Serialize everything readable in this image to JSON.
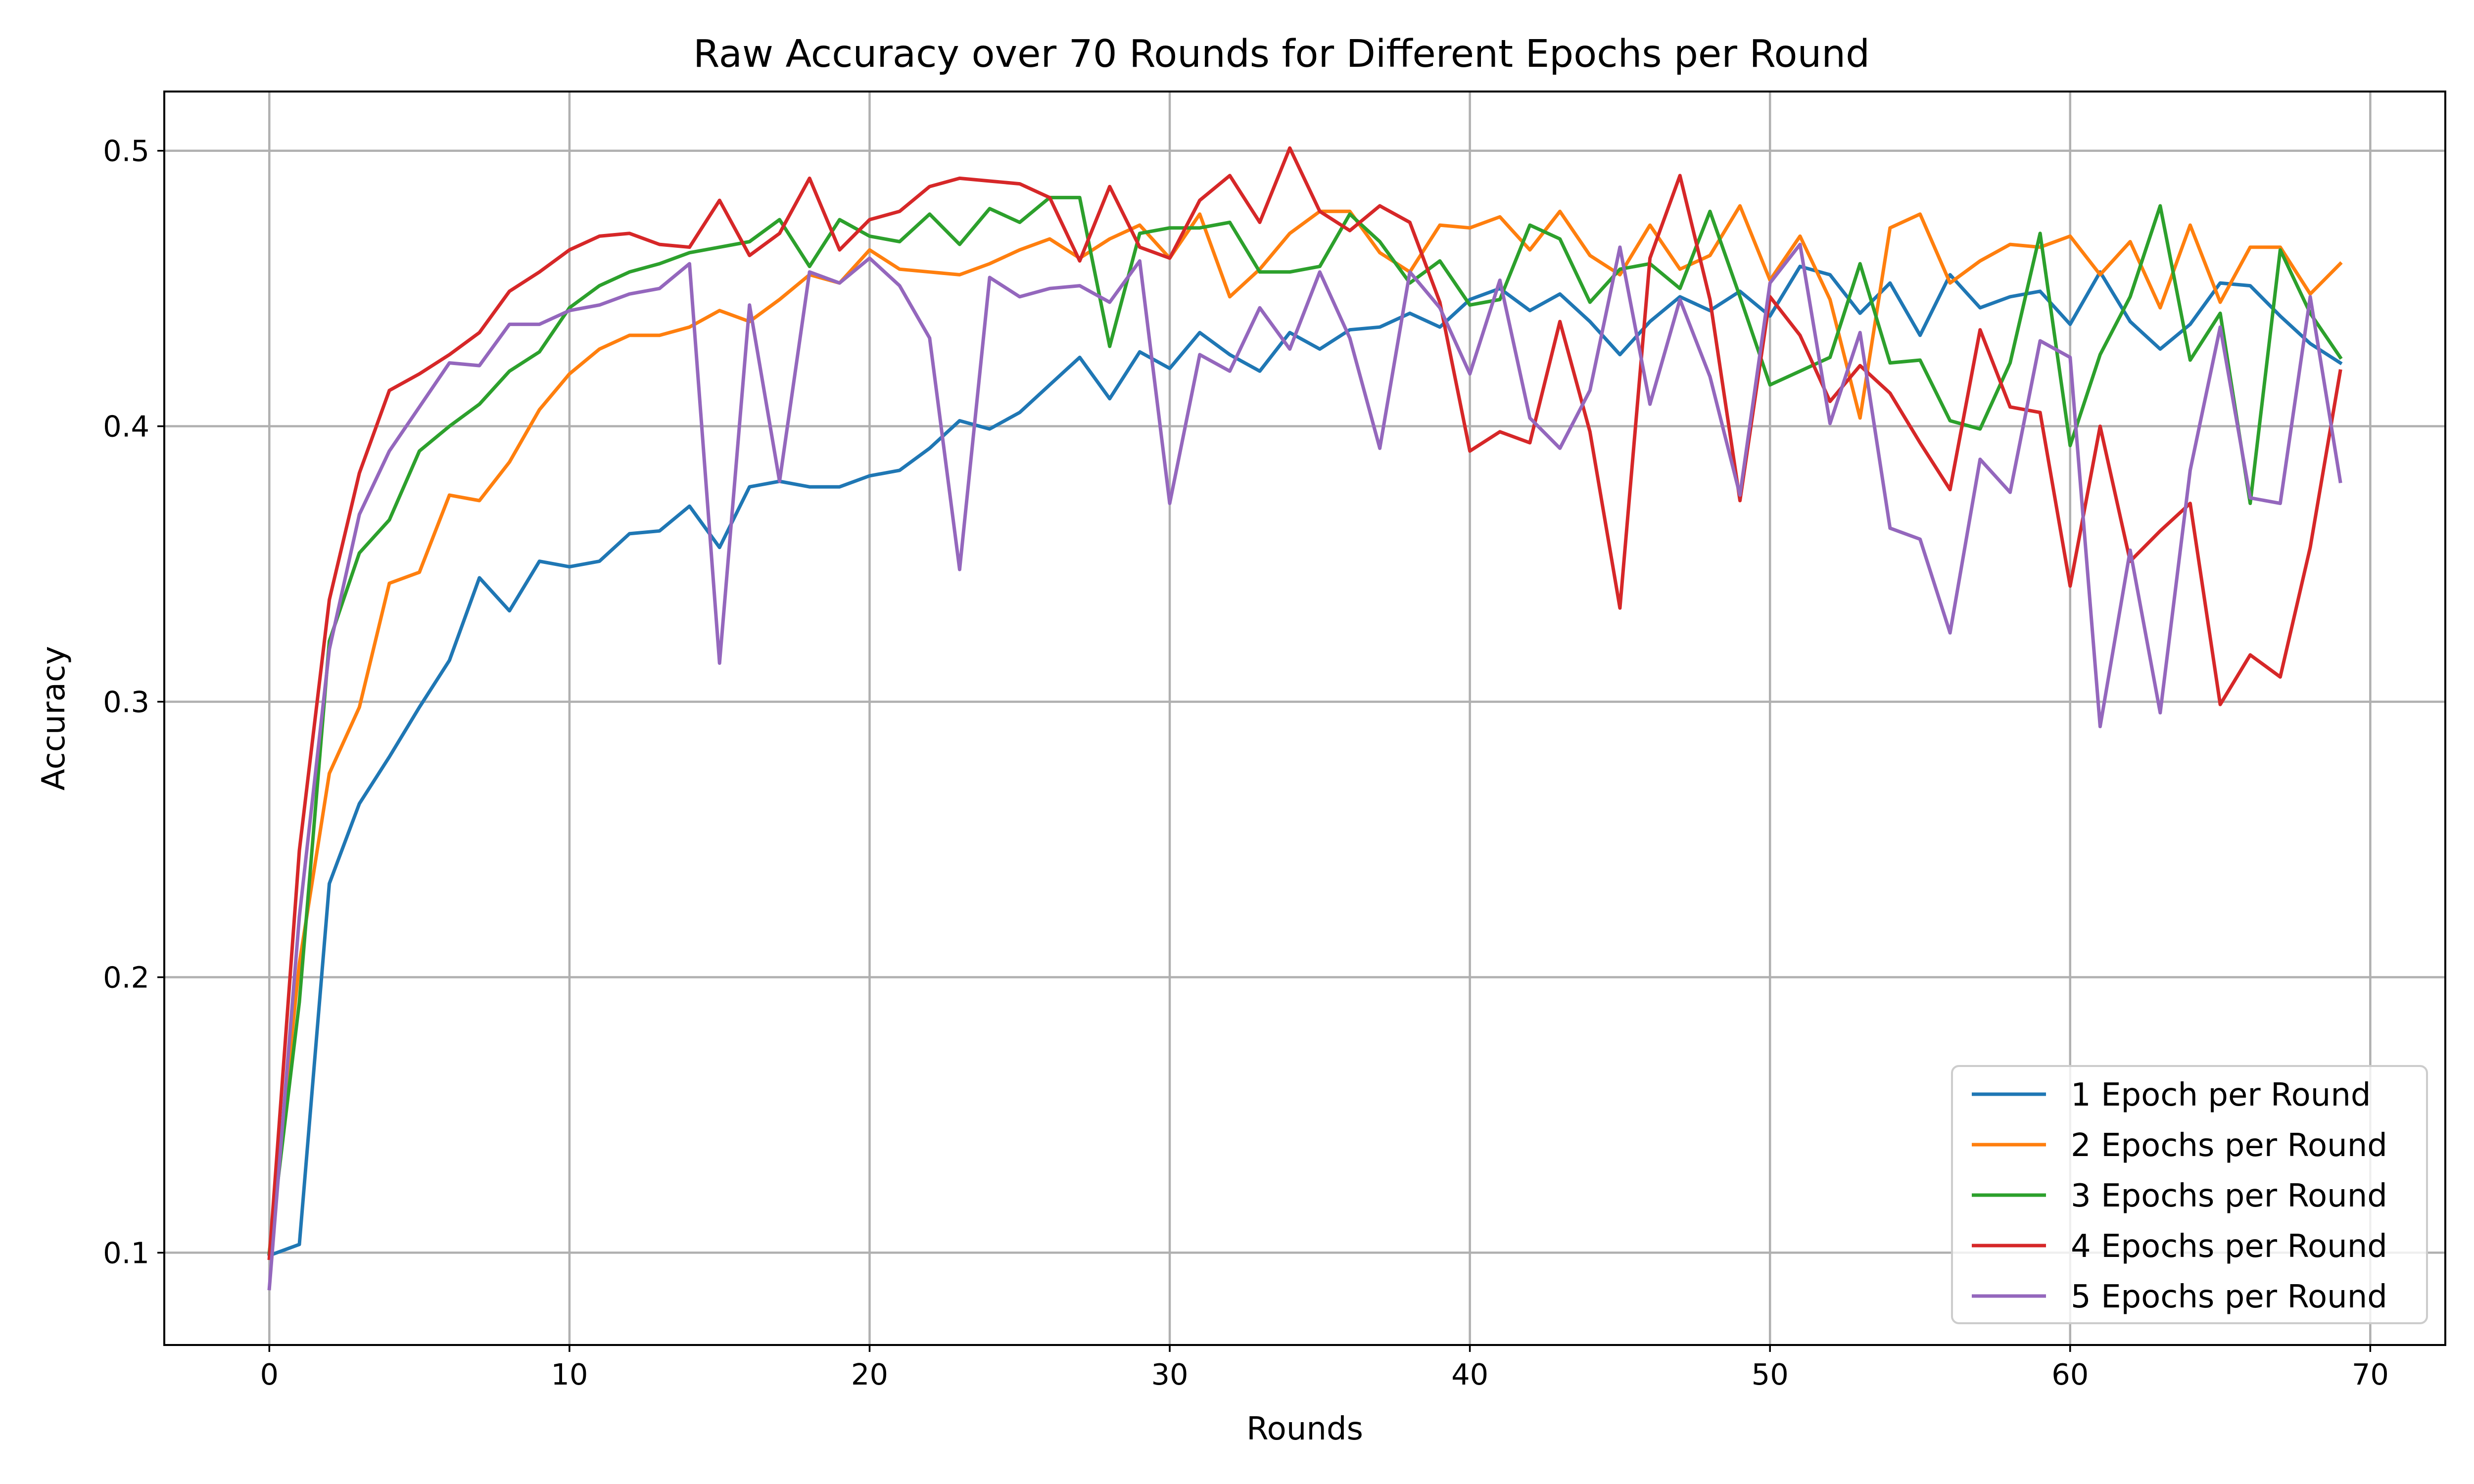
{
  "chart_data": {
    "type": "line",
    "title": "Raw Accuracy over 70 Rounds for Different Epochs per Round",
    "xlabel": "Rounds",
    "ylabel": "Accuracy",
    "xlim": [
      -3.5,
      72.5
    ],
    "ylim": [
      0.0665,
      0.5215
    ],
    "xticks": [
      0,
      10,
      20,
      30,
      40,
      50,
      60,
      70
    ],
    "xtick_labels": [
      "0",
      "10",
      "20",
      "30",
      "40",
      "50",
      "60",
      "70"
    ],
    "yticks": [
      0.1,
      0.2,
      0.3,
      0.4,
      0.5
    ],
    "ytick_labels": [
      "0.1",
      "0.2",
      "0.3",
      "0.4",
      "0.5"
    ],
    "grid": true,
    "legend_position": "lower-right",
    "x": [
      0,
      1,
      2,
      3,
      4,
      5,
      6,
      7,
      8,
      9,
      10,
      11,
      12,
      13,
      14,
      15,
      16,
      17,
      18,
      19,
      20,
      21,
      22,
      23,
      24,
      25,
      26,
      27,
      28,
      29,
      30,
      31,
      32,
      33,
      34,
      35,
      36,
      37,
      38,
      39,
      40,
      41,
      42,
      43,
      44,
      45,
      46,
      47,
      48,
      49,
      50,
      51,
      52,
      53,
      54,
      55,
      56,
      57,
      58,
      59,
      60,
      61,
      62,
      63,
      64,
      65,
      66,
      67,
      68,
      69
    ],
    "series": [
      {
        "name": "1 Epoch per Round",
        "color": "#1f77b4",
        "values": [
          0.099,
          0.103,
          0.234,
          0.263,
          0.28,
          0.298,
          0.315,
          0.345,
          0.333,
          0.351,
          0.349,
          0.351,
          0.361,
          0.362,
          0.371,
          0.356,
          0.378,
          0.38,
          0.378,
          0.378,
          0.382,
          0.384,
          0.392,
          0.402,
          0.399,
          0.405,
          0.415,
          0.425,
          0.41,
          0.427,
          0.421,
          0.434,
          0.426,
          0.42,
          0.434,
          0.428,
          0.435,
          0.436,
          0.441,
          0.436,
          0.446,
          0.45,
          0.442,
          0.448,
          0.438,
          0.426,
          0.438,
          0.447,
          0.442,
          0.449,
          0.44,
          0.458,
          0.455,
          0.441,
          0.452,
          0.433,
          0.455,
          0.443,
          0.447,
          0.449,
          0.437,
          0.456,
          0.438,
          0.428,
          0.437,
          0.452,
          0.451,
          0.44,
          0.43,
          0.423
        ]
      },
      {
        "name": "2 Epochs per Round",
        "color": "#ff7f0e",
        "values": [
          0.1,
          0.205,
          0.274,
          0.298,
          0.343,
          0.347,
          0.375,
          0.373,
          0.387,
          0.406,
          0.419,
          0.428,
          0.433,
          0.433,
          0.436,
          0.442,
          0.438,
          0.446,
          0.455,
          0.452,
          0.464,
          0.457,
          0.456,
          0.455,
          0.459,
          0.464,
          0.468,
          0.461,
          0.468,
          0.473,
          0.461,
          0.477,
          0.447,
          0.457,
          0.47,
          0.478,
          0.478,
          0.463,
          0.456,
          0.473,
          0.472,
          0.476,
          0.464,
          0.478,
          0.462,
          0.455,
          0.473,
          0.457,
          0.462,
          0.48,
          0.453,
          0.469,
          0.446,
          0.403,
          0.472,
          0.477,
          0.452,
          0.46,
          0.466,
          0.465,
          0.469,
          0.455,
          0.467,
          0.443,
          0.473,
          0.445,
          0.465,
          0.465,
          0.448,
          0.459
        ]
      },
      {
        "name": "3 Epochs per Round",
        "color": "#2ca02c",
        "values": [
          0.1,
          0.191,
          0.322,
          0.354,
          0.366,
          0.391,
          0.4,
          0.408,
          0.42,
          0.427,
          0.443,
          0.451,
          0.456,
          0.459,
          0.463,
          0.465,
          0.467,
          0.475,
          0.458,
          0.475,
          0.469,
          0.467,
          0.477,
          0.466,
          0.479,
          0.474,
          0.483,
          0.483,
          0.429,
          0.47,
          0.472,
          0.472,
          0.474,
          0.456,
          0.456,
          0.458,
          0.477,
          0.467,
          0.452,
          0.46,
          0.444,
          0.446,
          0.473,
          0.468,
          0.445,
          0.457,
          0.459,
          0.45,
          0.478,
          0.447,
          0.415,
          0.42,
          0.425,
          0.459,
          0.423,
          0.424,
          0.402,
          0.399,
          0.423,
          0.47,
          0.393,
          0.426,
          0.447,
          0.48,
          0.424,
          0.441,
          0.372,
          0.464,
          0.441,
          0.425
        ]
      },
      {
        "name": "4 Epochs per Round",
        "color": "#d62728",
        "values": [
          0.098,
          0.246,
          0.337,
          0.383,
          0.413,
          0.419,
          0.426,
          0.434,
          0.449,
          0.456,
          0.464,
          0.469,
          0.47,
          0.466,
          0.465,
          0.482,
          0.462,
          0.47,
          0.49,
          0.464,
          0.475,
          0.478,
          0.487,
          0.49,
          0.489,
          0.488,
          0.483,
          0.46,
          0.487,
          0.465,
          0.461,
          0.482,
          0.491,
          0.474,
          0.501,
          0.478,
          0.471,
          0.48,
          0.474,
          0.445,
          0.391,
          0.398,
          0.394,
          0.438,
          0.398,
          0.334,
          0.461,
          0.491,
          0.446,
          0.373,
          0.447,
          0.433,
          0.409,
          0.422,
          0.412,
          0.394,
          0.377,
          0.435,
          0.407,
          0.405,
          0.342,
          0.4,
          0.351,
          0.362,
          0.372,
          0.299,
          0.317,
          0.309,
          0.356,
          0.42
        ]
      },
      {
        "name": "5 Epochs per Round",
        "color": "#9467bd",
        "values": [
          0.087,
          0.222,
          0.319,
          0.368,
          0.391,
          0.407,
          0.423,
          0.422,
          0.437,
          0.437,
          0.442,
          0.444,
          0.448,
          0.45,
          0.459,
          0.314,
          0.444,
          0.38,
          0.456,
          0.452,
          0.461,
          0.451,
          0.432,
          0.348,
          0.454,
          0.447,
          0.45,
          0.451,
          0.445,
          0.46,
          0.372,
          0.426,
          0.42,
          0.443,
          0.428,
          0.456,
          0.432,
          0.392,
          0.456,
          0.443,
          0.419,
          0.453,
          0.403,
          0.392,
          0.413,
          0.465,
          0.408,
          0.446,
          0.418,
          0.375,
          0.452,
          0.466,
          0.401,
          0.434,
          0.363,
          0.359,
          0.325,
          0.388,
          0.376,
          0.431,
          0.425,
          0.291,
          0.355,
          0.296,
          0.384,
          0.436,
          0.374,
          0.372,
          0.447,
          0.38
        ]
      }
    ]
  }
}
